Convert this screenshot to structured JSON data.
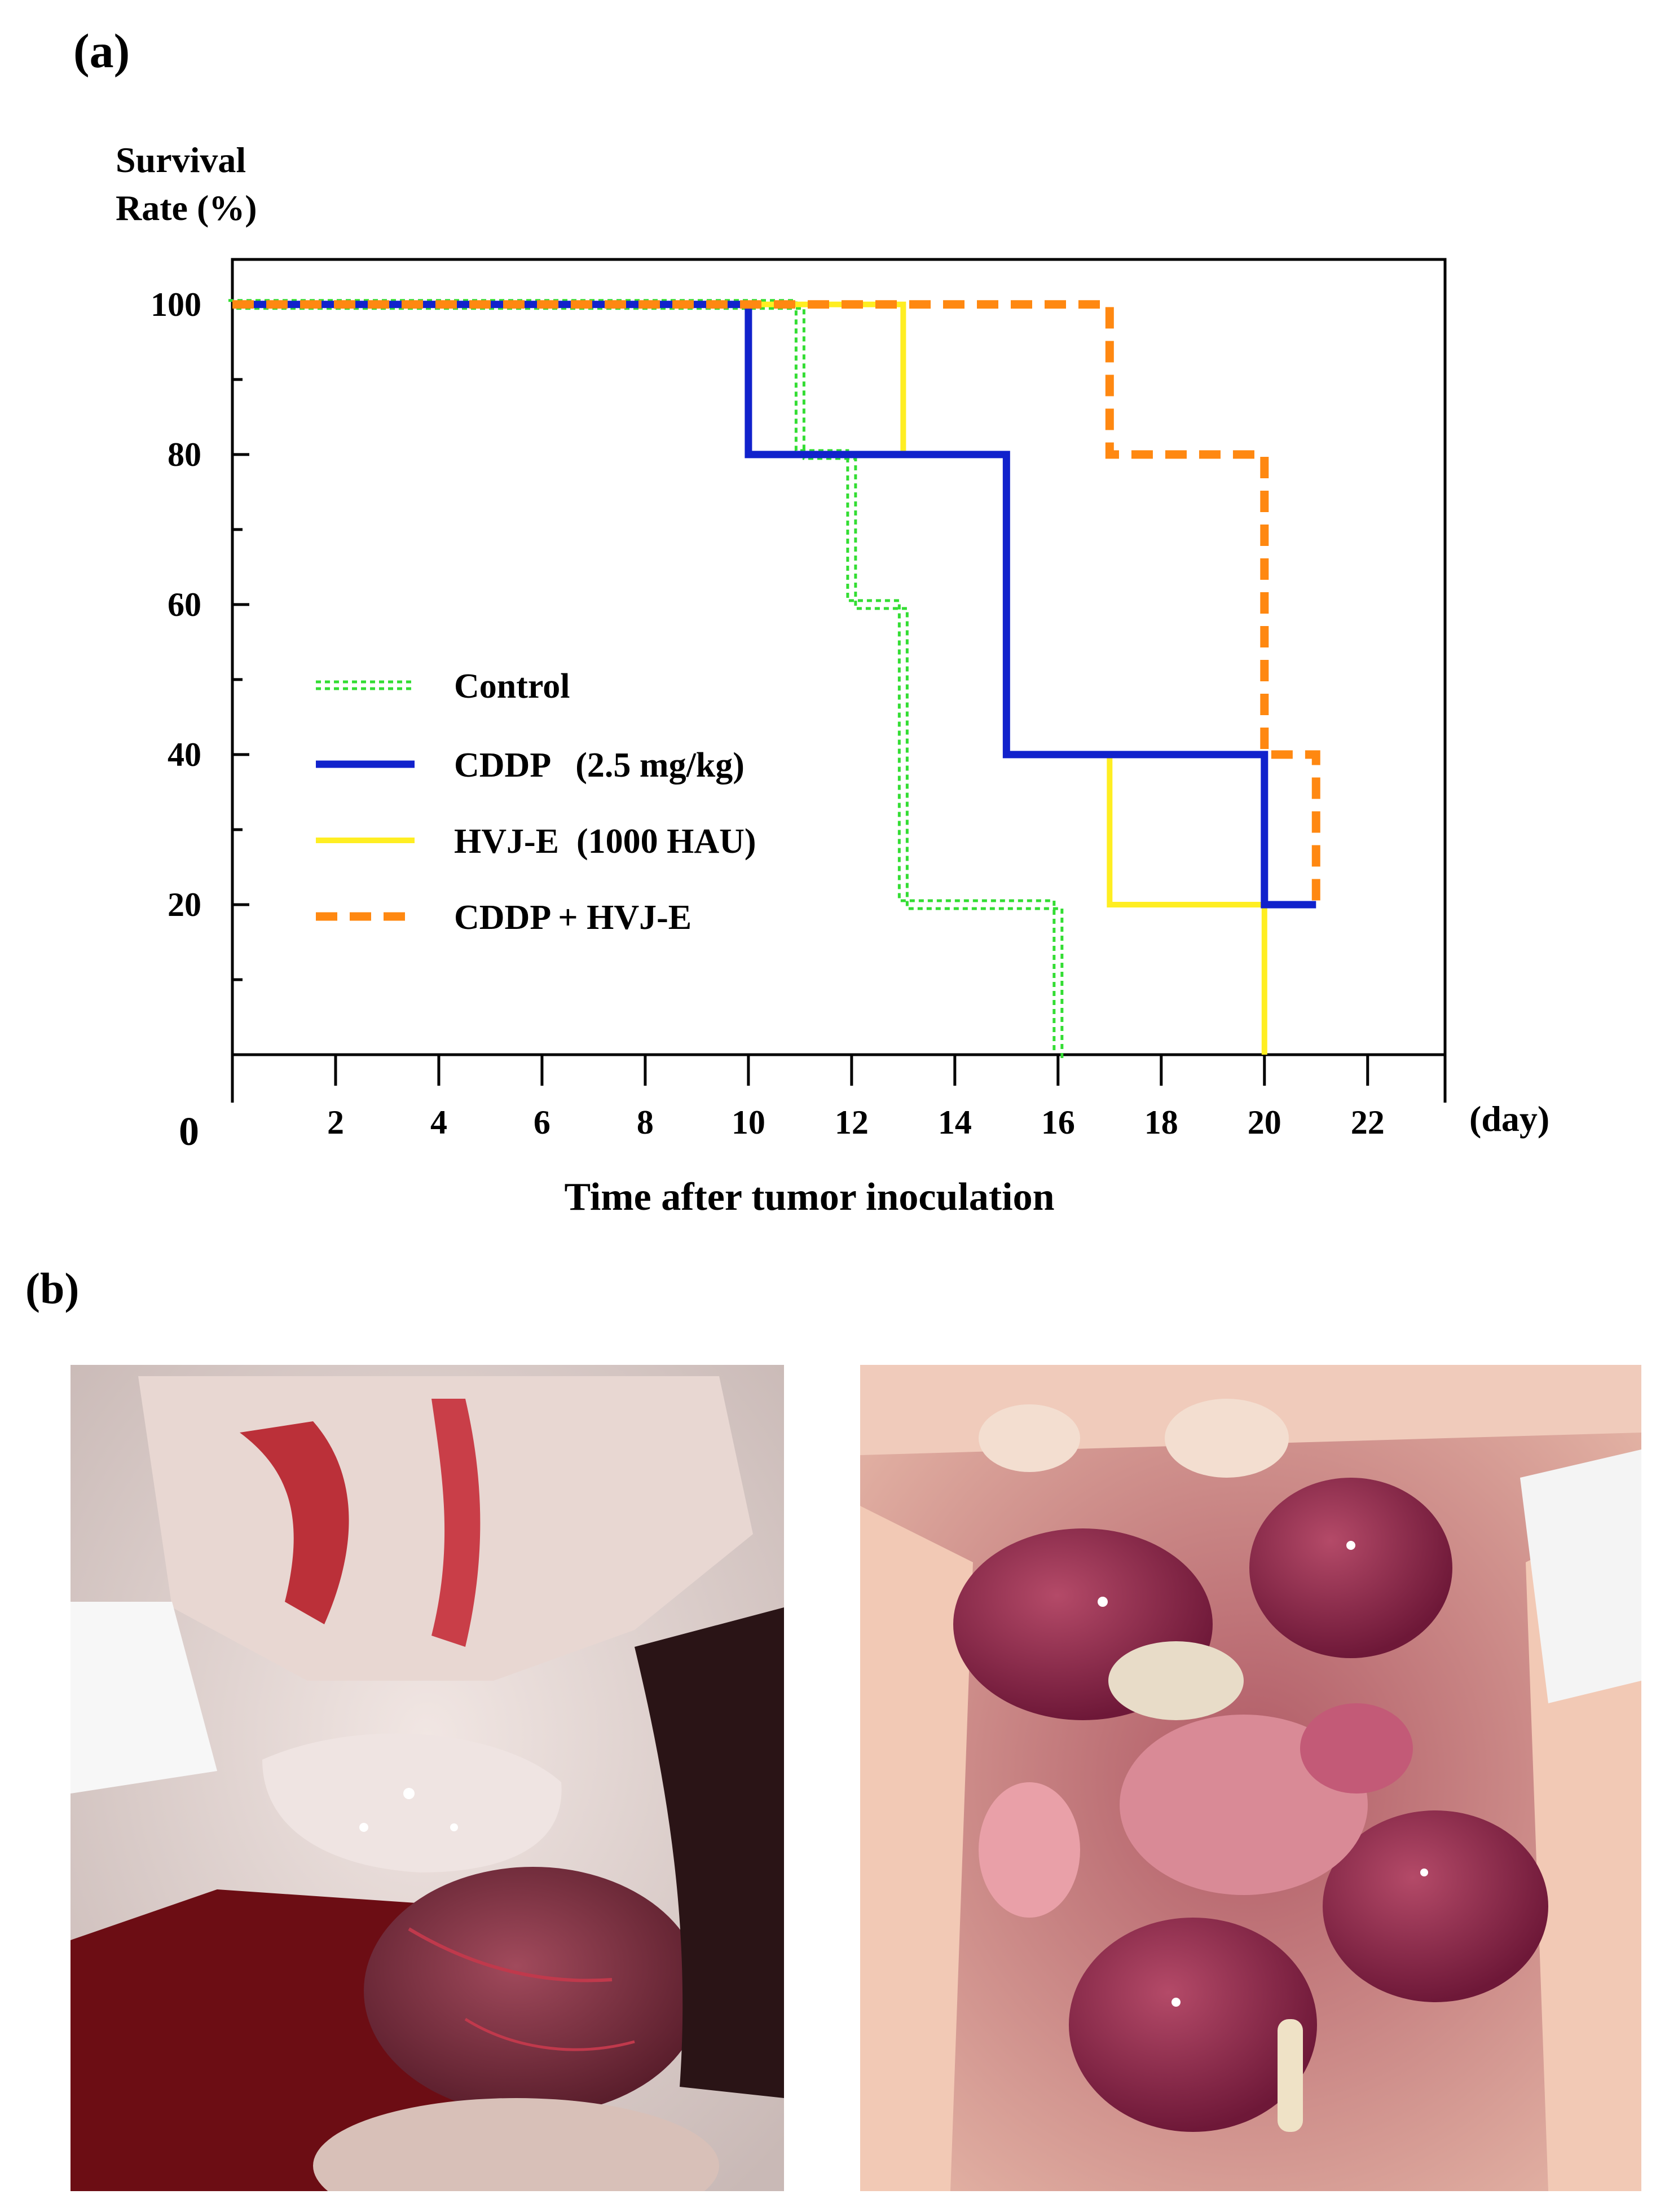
{
  "panel_a_label": "(a)",
  "panel_b_label": "(b)",
  "chart_data": {
    "type": "line",
    "step": true,
    "ylabel_line1": "Survival",
    "ylabel_line2": "Rate (%)",
    "xlabel": "Time after tumor inoculation",
    "x_unit": "(day)",
    "origin_label": "0",
    "xlim": [
      0,
      23.5
    ],
    "ylim": [
      0,
      106
    ],
    "x_ticks": [
      2,
      4,
      6,
      8,
      10,
      12,
      14,
      16,
      18,
      20,
      22
    ],
    "y_ticks": [
      20,
      40,
      60,
      80,
      100
    ],
    "grid": false,
    "legend_position": "lower-left",
    "colors": {
      "control": "#33dd33",
      "cddp": "#1122cc",
      "hvje": "#ffee22",
      "combo": "#ff8811"
    },
    "series": [
      {
        "key": "control",
        "name": "Control",
        "style": "dotted-double",
        "x": [
          0,
          11,
          11,
          12,
          12,
          13,
          13,
          16,
          16
        ],
        "y": [
          100,
          100,
          80,
          80,
          60,
          60,
          20,
          20,
          0
        ]
      },
      {
        "key": "cddp",
        "name": "CDDP   (2.5 mg/kg)",
        "style": "solid",
        "x": [
          0,
          10,
          10,
          15,
          15,
          20,
          20,
          21
        ],
        "y": [
          100,
          100,
          80,
          80,
          40,
          40,
          20,
          20
        ]
      },
      {
        "key": "hvje",
        "name": "HVJ-E  (1000 HAU)",
        "style": "solid",
        "x": [
          0,
          13,
          13,
          15,
          15,
          17,
          17,
          20,
          20
        ],
        "y": [
          100,
          100,
          80,
          80,
          40,
          40,
          20,
          20,
          0
        ]
      },
      {
        "key": "combo",
        "name": "CDDP + HVJ-E",
        "style": "dashed",
        "x": [
          0,
          17,
          17,
          20,
          20,
          21,
          21
        ],
        "y": [
          100,
          100,
          80,
          80,
          40,
          40,
          20
        ]
      }
    ]
  }
}
